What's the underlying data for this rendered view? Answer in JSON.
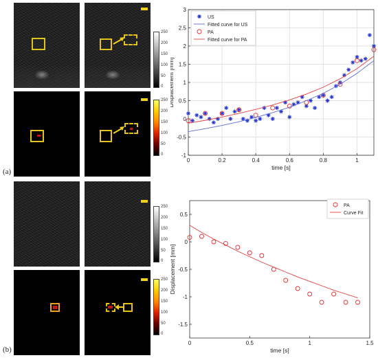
{
  "panel_labels": {
    "a": "(a)",
    "b": "(b)"
  },
  "colorbar_ticks": [
    "250",
    "200",
    "150",
    "100",
    "50",
    "0"
  ],
  "colorbar_ticks_top": [
    "250",
    "200",
    "150",
    "100",
    "50",
    "0"
  ],
  "chart_data": [
    {
      "type": "scatter",
      "xlabel": "time [s]",
      "ylabel": "Displacement [mm]",
      "xlim": [
        0,
        1.1
      ],
      "ylim": [
        -1,
        3
      ],
      "xticks": [
        "0",
        "0.2",
        "0.4",
        "0.6",
        "0.8",
        "1"
      ],
      "xtick_vals": [
        0,
        0.2,
        0.4,
        0.6,
        0.8,
        1
      ],
      "yticks": [
        "-1",
        "-0.5",
        "0",
        "0.5",
        "1",
        "1.5",
        "2",
        "2.5",
        "3"
      ],
      "ytick_vals": [
        -1,
        -0.5,
        0,
        0.5,
        1,
        1.5,
        2,
        2.5,
        3
      ],
      "grid": true,
      "legend_position": "top-left",
      "legend": [
        "US",
        "Fitted curve for US",
        "PA",
        "Fitted curve for PA"
      ],
      "colors": {
        "us": "#2233cc",
        "us_fit": "#5b6bdb",
        "pa": "#e03030",
        "pa_fit": "#e04040"
      },
      "series": [
        {
          "name": "US",
          "marker": "star",
          "x": [
            0,
            0.025,
            0.05,
            0.075,
            0.1,
            0.125,
            0.15,
            0.175,
            0.2,
            0.225,
            0.25,
            0.275,
            0.3,
            0.325,
            0.35,
            0.375,
            0.4,
            0.425,
            0.45,
            0.475,
            0.5,
            0.525,
            0.55,
            0.575,
            0.6,
            0.625,
            0.65,
            0.675,
            0.7,
            0.725,
            0.75,
            0.775,
            0.8,
            0.825,
            0.85,
            0.875,
            0.9,
            0.925,
            0.95,
            0.975,
            1.0,
            1.025,
            1.05,
            1.075,
            1.1
          ],
          "y": [
            0.15,
            -0.05,
            0.1,
            0.05,
            0.15,
            0.0,
            -0.1,
            0.0,
            0.15,
            0.3,
            0.0,
            0.2,
            0.25,
            0.0,
            -0.05,
            0.05,
            -0.05,
            0.0,
            0.3,
            0.1,
            0.0,
            0.3,
            0.2,
            0.45,
            0.05,
            0.4,
            0.45,
            0.6,
            0.35,
            0.5,
            0.3,
            0.6,
            0.65,
            0.5,
            0.6,
            0.9,
            1.0,
            1.2,
            1.35,
            1.55,
            1.7,
            1.6,
            1.65,
            2.3,
            2.0
          ]
        },
        {
          "name": "PA",
          "marker": "circle",
          "x": [
            0,
            0.1,
            0.2,
            0.3,
            0.4,
            0.5,
            0.6,
            0.7,
            0.8,
            0.9,
            1.0,
            1.1
          ],
          "y": [
            -0.05,
            0.15,
            0.15,
            0.25,
            0.1,
            0.3,
            0.35,
            0.45,
            0.65,
            0.95,
            1.6,
            1.9
          ]
        },
        {
          "name": "Fitted curve for US",
          "line": true,
          "x": [
            0,
            0.1,
            0.2,
            0.3,
            0.4,
            0.5,
            0.6,
            0.7,
            0.8,
            0.9,
            1.0,
            1.1
          ],
          "y": [
            -0.35,
            -0.27,
            -0.18,
            -0.08,
            0.04,
            0.17,
            0.32,
            0.5,
            0.7,
            0.95,
            1.25,
            1.6
          ]
        },
        {
          "name": "Fitted curve for PA",
          "line": true,
          "x": [
            0,
            0.1,
            0.2,
            0.3,
            0.4,
            0.5,
            0.6,
            0.7,
            0.8,
            0.9,
            1.0,
            1.1
          ],
          "y": [
            -0.12,
            -0.04,
            0.05,
            0.15,
            0.26,
            0.38,
            0.52,
            0.68,
            0.87,
            1.1,
            1.38,
            1.72
          ]
        }
      ]
    },
    {
      "type": "scatter",
      "xlabel": "time [s]",
      "ylabel": "Displacement [mm]",
      "xlim": [
        0,
        1.5
      ],
      "ylim": [
        -1.75,
        0.75
      ],
      "xticks": [
        "0",
        "0.5",
        "1",
        "1.5"
      ],
      "xtick_vals": [
        0,
        0.5,
        1,
        1.5
      ],
      "yticks": [
        "0.5",
        "0",
        "-0.5",
        "-1",
        "-1.5"
      ],
      "ytick_vals": [
        0.5,
        0,
        -0.5,
        -1,
        -1.5
      ],
      "grid": false,
      "legend_position": "top-right",
      "legend": [
        "PA",
        "Curve Fit"
      ],
      "colors": {
        "pa": "#e03030",
        "fit": "#e04040"
      },
      "series": [
        {
          "name": "PA",
          "marker": "circle",
          "x": [
            0,
            0.1,
            0.2,
            0.3,
            0.4,
            0.5,
            0.6,
            0.7,
            0.8,
            0.9,
            1.0,
            1.1,
            1.2,
            1.3,
            1.4
          ],
          "y": [
            0.08,
            0.1,
            0.0,
            -0.03,
            -0.1,
            -0.2,
            -0.25,
            -0.5,
            -0.7,
            -0.85,
            -0.95,
            -1.1,
            -0.95,
            -1.1,
            -1.1
          ]
        },
        {
          "name": "Curve Fit",
          "line": true,
          "x": [
            0,
            0.1,
            0.2,
            0.3,
            0.4,
            0.5,
            0.6,
            0.7,
            0.8,
            0.9,
            1.0,
            1.1,
            1.2,
            1.3,
            1.4
          ],
          "y": [
            0.3,
            0.17,
            0.05,
            -0.06,
            -0.17,
            -0.27,
            -0.37,
            -0.46,
            -0.55,
            -0.64,
            -0.72,
            -0.8,
            -0.88,
            -0.95,
            -1.02
          ]
        }
      ]
    }
  ]
}
